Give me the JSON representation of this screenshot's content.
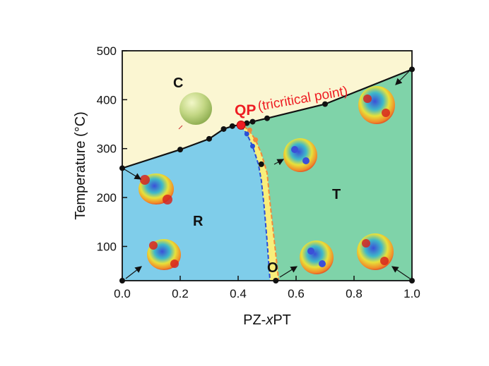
{
  "chart_data": {
    "type": "scatter",
    "xlabel_parts": [
      "PZ-",
      "x",
      "PT"
    ],
    "ylabel": "Temperature (°C)",
    "xlim": [
      0.0,
      1.0
    ],
    "ylim": [
      30,
      500
    ],
    "xticks": [
      "0.0",
      "0.2",
      "0.4",
      "0.6",
      "0.8",
      "1.0"
    ],
    "yticks": [
      "100",
      "200",
      "300",
      "400",
      "500"
    ],
    "xtick_values": [
      0.0,
      0.2,
      0.4,
      0.6,
      0.8,
      1.0
    ],
    "ytick_values": [
      100,
      200,
      300,
      400,
      500
    ],
    "grid": false,
    "colors": {
      "cubic": "#fbf6d2",
      "rhombohedral": "#7fcdea",
      "tetragonal": "#7fd3a9",
      "orthorhombic": "#f8ee7a",
      "boundary": "#111111",
      "qp": "#ee1d23",
      "blue_boundary": "#2b4fd6",
      "orange_boundary": "#f08a3c"
    },
    "curie_boundary": {
      "x": [
        0.0,
        0.2,
        0.3,
        0.35,
        0.38,
        0.4,
        0.45,
        0.5,
        0.7,
        1.0
      ],
      "y": [
        260,
        298,
        320,
        340,
        346,
        348,
        355,
        362,
        391,
        462
      ]
    },
    "phase_boundary_points": {
      "x": [
        0.0,
        0.2,
        0.3,
        0.35,
        0.38,
        0.43,
        0.45,
        0.5,
        0.7,
        1.0,
        0.0,
        1.0,
        0.48,
        0.53
      ],
      "y": [
        260,
        298,
        320,
        340,
        346,
        352,
        355,
        362,
        391,
        462,
        30,
        30,
        268,
        30
      ]
    },
    "r_o_boundary": {
      "x": [
        0.41,
        0.43,
        0.45,
        0.47,
        0.48,
        0.49,
        0.5,
        0.51
      ],
      "y": [
        346,
        330,
        305,
        268,
        235,
        180,
        110,
        30
      ]
    },
    "o_t_boundary": {
      "x": [
        0.42,
        0.44,
        0.46,
        0.48,
        0.5,
        0.51,
        0.525,
        0.54
      ],
      "y": [
        346,
        335,
        318,
        290,
        250,
        190,
        110,
        30
      ]
    },
    "blue_points": {
      "x": [
        0.43,
        0.45
      ],
      "y": [
        330,
        305
      ]
    },
    "orange_points": {
      "x": [
        0.44,
        0.46
      ],
      "y": [
        338,
        318
      ]
    },
    "qp_point": {
      "x": 0.41,
      "y": 348
    },
    "annotations": {
      "qp_label": "QP",
      "qp_note": "(tricritical point)",
      "cubic": "C",
      "rhombohedral": "R",
      "tetragonal": "T",
      "orthorhombic": "O"
    }
  }
}
